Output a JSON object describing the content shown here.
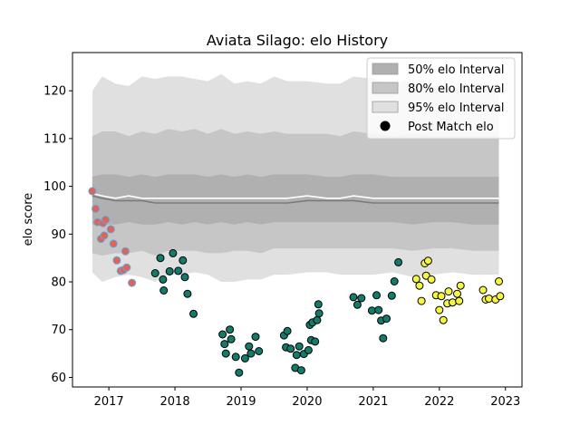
{
  "chart_data": {
    "type": "scatter",
    "title": "Aviata Silago: elo History",
    "xlabel": "",
    "ylabel": "elo score",
    "xlim": [
      2016.45,
      2023.25
    ],
    "ylim": [
      58,
      128
    ],
    "x_ticks": [
      {
        "value": 2017,
        "label": "2017"
      },
      {
        "value": 2018,
        "label": "2018"
      },
      {
        "value": 2019,
        "label": "2019"
      },
      {
        "value": 2020,
        "label": "2020"
      },
      {
        "value": 2021,
        "label": "2021"
      },
      {
        "value": 2022,
        "label": "2022"
      },
      {
        "value": 2023,
        "label": "2023"
      }
    ],
    "y_ticks": [
      {
        "value": 60,
        "label": "60"
      },
      {
        "value": 70,
        "label": "70"
      },
      {
        "value": 80,
        "label": "80"
      },
      {
        "value": 90,
        "label": "90"
      },
      {
        "value": 100,
        "label": "100"
      },
      {
        "value": 110,
        "label": "110"
      },
      {
        "value": 120,
        "label": "120"
      }
    ],
    "grid": false,
    "legend_position": "top-right",
    "legend": [
      {
        "label": "50% elo Interval",
        "kind": "patch",
        "color": "#b0b0b0"
      },
      {
        "label": "80% elo Interval",
        "kind": "patch",
        "color": "#c6c6c6"
      },
      {
        "label": "95% elo Interval",
        "kind": "patch",
        "color": "#e0e0e0"
      },
      {
        "label": "Post Match elo",
        "kind": "marker",
        "color": "#000000"
      }
    ],
    "bands": {
      "x": [
        2016.75,
        2016.9,
        2017.1,
        2017.3,
        2017.5,
        2017.7,
        2017.9,
        2018.1,
        2018.3,
        2018.5,
        2018.7,
        2018.9,
        2019.1,
        2019.3,
        2019.5,
        2019.7,
        2020.0,
        2020.3,
        2020.5,
        2020.7,
        2021.0,
        2021.3,
        2021.6,
        2021.9,
        2022.2,
        2022.5,
        2022.9
      ],
      "p95_low": [
        82,
        80,
        81,
        81.5,
        81,
        80,
        81.5,
        81.5,
        82,
        81.5,
        80,
        80,
        80.5,
        80.5,
        81.5,
        81.5,
        82,
        82,
        81.5,
        81.5,
        81.5,
        82,
        81,
        81.5,
        82,
        81.5,
        81.5
      ],
      "p95_high": [
        120,
        123,
        121.5,
        121,
        123,
        122.5,
        123,
        123,
        122.5,
        122,
        123.5,
        121.5,
        122,
        121.5,
        123,
        122,
        122,
        121.5,
        121.5,
        123,
        122.5,
        121.5,
        122.5,
        121,
        121,
        121.5,
        121.5
      ],
      "p80_low": [
        86,
        85.5,
        86,
        86,
        86.5,
        85.5,
        86.5,
        86.5,
        86.5,
        86,
        86,
        86.5,
        86.5,
        86,
        87,
        87,
        87,
        87,
        87,
        87,
        87,
        87,
        86.5,
        87,
        87,
        86.5,
        86.5
      ],
      "p80_high": [
        110.5,
        111.5,
        111.5,
        110.5,
        111.5,
        111,
        112,
        111.5,
        112,
        111,
        112,
        111,
        111.5,
        111,
        111.5,
        111,
        111,
        111,
        110.5,
        111.5,
        111,
        110.5,
        111,
        110.5,
        110.5,
        110.5,
        110.5
      ],
      "p50_low": [
        92,
        92,
        92,
        92.5,
        92,
        92,
        92.5,
        92,
        92.5,
        92,
        92.5,
        92,
        92.5,
        92,
        92.5,
        92.5,
        92.5,
        92.5,
        92.5,
        92.5,
        92.5,
        92.5,
        92,
        92.5,
        92.5,
        92,
        92
      ],
      "p50_high": [
        102,
        102.5,
        102.5,
        102,
        102.5,
        102,
        102.5,
        102.5,
        102.5,
        102,
        102.5,
        102,
        102.5,
        102,
        102.5,
        102.5,
        102.5,
        102,
        102,
        102.5,
        102.5,
        102,
        102,
        102,
        102,
        102,
        102
      ],
      "median": [
        98,
        97.5,
        97,
        97,
        97,
        96.5,
        96.5,
        96.5,
        96.5,
        96.5,
        96.5,
        96.5,
        96.5,
        96.5,
        96.5,
        96.5,
        97,
        97,
        97,
        97,
        96.5,
        96.5,
        96.5,
        96.5,
        96.5,
        96.5,
        96.5
      ],
      "mean": [
        98.5,
        98,
        97.5,
        98,
        97.5,
        97.5,
        97.5,
        97.5,
        97.5,
        97.5,
        97.5,
        97.5,
        97.5,
        97.5,
        97.5,
        97.5,
        98,
        97.5,
        97.5,
        98,
        97.5,
        97.5,
        97.5,
        97.5,
        97.5,
        97.5,
        97.5
      ]
    },
    "series": [
      {
        "color": "#e0635a",
        "edge": "#5fa8d8",
        "points": [
          [
            2016.75,
            99
          ],
          [
            2016.8,
            95.3
          ],
          [
            2016.83,
            92.5
          ],
          [
            2016.88,
            89
          ],
          [
            2016.91,
            92.3
          ],
          [
            2016.93,
            89.7
          ],
          [
            2016.95,
            93
          ],
          [
            2017.03,
            91
          ],
          [
            2017.07,
            88
          ],
          [
            2017.12,
            84.5
          ],
          [
            2017.18,
            82.3
          ],
          [
            2017.22,
            82.5
          ],
          [
            2017.25,
            86.4
          ],
          [
            2017.27,
            83
          ],
          [
            2017.35,
            79.8
          ]
        ]
      },
      {
        "color": "#127b6a",
        "edge": "#000000",
        "points": [
          [
            2017.7,
            81.8
          ],
          [
            2017.78,
            85
          ],
          [
            2017.82,
            80.5
          ],
          [
            2017.83,
            78.2
          ],
          [
            2017.92,
            82.2
          ],
          [
            2017.97,
            86
          ],
          [
            2018.05,
            82.3
          ],
          [
            2018.12,
            84.5
          ],
          [
            2018.15,
            81
          ],
          [
            2018.19,
            77.5
          ],
          [
            2018.28,
            73.3
          ],
          [
            2018.72,
            69
          ],
          [
            2018.75,
            67
          ],
          [
            2018.77,
            65
          ],
          [
            2018.83,
            70
          ],
          [
            2018.85,
            68
          ],
          [
            2018.92,
            64.3
          ],
          [
            2018.97,
            61
          ],
          [
            2019.06,
            64
          ],
          [
            2019.12,
            66.5
          ],
          [
            2019.15,
            65
          ],
          [
            2019.22,
            68.5
          ],
          [
            2019.27,
            65.5
          ],
          [
            2019.65,
            68.8
          ],
          [
            2019.68,
            66.3
          ],
          [
            2019.7,
            69.7
          ],
          [
            2019.75,
            66
          ],
          [
            2019.82,
            62
          ],
          [
            2019.84,
            64.7
          ],
          [
            2019.88,
            66.5
          ],
          [
            2019.91,
            61.5
          ],
          [
            2019.95,
            64.9
          ],
          [
            2020.02,
            65.7
          ],
          [
            2020.04,
            71
          ],
          [
            2020.06,
            67.8
          ],
          [
            2020.08,
            71.5
          ],
          [
            2020.12,
            67.5
          ],
          [
            2020.15,
            72
          ],
          [
            2020.17,
            75.3
          ],
          [
            2020.18,
            73.4
          ],
          [
            2020.7,
            76.8
          ],
          [
            2020.76,
            75.2
          ],
          [
            2020.82,
            76.6
          ],
          [
            2020.98,
            74
          ],
          [
            2021.05,
            77.2
          ],
          [
            2021.08,
            74.1
          ],
          [
            2021.12,
            71.9
          ],
          [
            2021.15,
            68.2
          ],
          [
            2021.2,
            72.3
          ],
          [
            2021.28,
            77.1
          ],
          [
            2021.32,
            80.1
          ],
          [
            2021.38,
            84.1
          ]
        ]
      },
      {
        "color": "#f5f542",
        "edge": "#000000",
        "points": [
          [
            2021.65,
            80.6
          ],
          [
            2021.7,
            79.2
          ],
          [
            2021.73,
            76
          ],
          [
            2021.78,
            83.9
          ],
          [
            2021.8,
            81.3
          ],
          [
            2021.83,
            84.4
          ],
          [
            2021.88,
            80.5
          ],
          [
            2021.95,
            77.2
          ],
          [
            2022.0,
            74.1
          ],
          [
            2022.03,
            77
          ],
          [
            2022.06,
            72
          ],
          [
            2022.12,
            75.5
          ],
          [
            2022.14,
            78
          ],
          [
            2022.2,
            75.7
          ],
          [
            2022.27,
            77.5
          ],
          [
            2022.3,
            76
          ],
          [
            2022.32,
            79.2
          ],
          [
            2022.66,
            78.3
          ],
          [
            2022.7,
            76.3
          ],
          [
            2022.75,
            76.5
          ],
          [
            2022.85,
            76.3
          ],
          [
            2022.9,
            80.1
          ],
          [
            2022.92,
            77
          ]
        ]
      }
    ]
  }
}
